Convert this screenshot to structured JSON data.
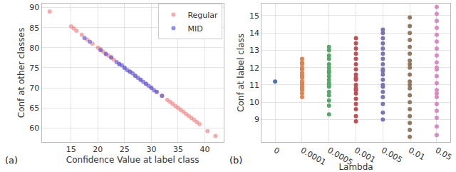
{
  "chart_data": [
    {
      "type": "scatter",
      "annotation": "(a)",
      "x_label": "Confidence Value at label class",
      "y_label": "Conf at other classes",
      "xlim": [
        9.5,
        43.5
      ],
      "xticks": [
        15,
        20,
        25,
        30,
        35,
        40
      ],
      "ylim": [
        56.5,
        91
      ],
      "yticks": [
        60,
        65,
        70,
        75,
        80,
        85,
        90
      ],
      "grid": true,
      "legend": "upper right",
      "marker": "circle",
      "series": [
        {
          "name": "Regular",
          "color": "#f08080",
          "x": [
            11,
            15,
            15.5,
            16,
            17,
            18,
            19,
            20,
            20.5,
            21,
            21.5,
            22,
            22.5,
            23,
            24,
            25,
            26,
            27,
            28,
            29,
            30,
            31,
            32,
            33,
            33.5,
            34,
            34.5,
            35,
            35.5,
            36,
            36.5,
            37,
            37.5,
            38,
            38.5,
            39,
            40.5,
            42
          ],
          "values": [
            89,
            85.3,
            84.8,
            84.2,
            83.2,
            82,
            81,
            80,
            79.6,
            79,
            78.5,
            78,
            77.5,
            77,
            76,
            75,
            74,
            73,
            72,
            71,
            70,
            69,
            68,
            67,
            66.5,
            66,
            65.5,
            65,
            64.5,
            64,
            63.5,
            63,
            62.5,
            62,
            61.5,
            61,
            59.2,
            58
          ]
        },
        {
          "name": "MID",
          "color": "#5555dd",
          "x": [
            17.5,
            18.5,
            20.5,
            21.5,
            22.5,
            23.5,
            24,
            24.5,
            25,
            25.5,
            26,
            26.5,
            27,
            27.5,
            28,
            28.5,
            29,
            29.5,
            30,
            30.5,
            31,
            32
          ],
          "values": [
            82.4,
            81.5,
            79.4,
            78.4,
            77.6,
            76.4,
            75.9,
            75.6,
            75,
            74.4,
            74,
            73.6,
            73,
            72.5,
            72,
            71.5,
            71,
            70.5,
            70,
            69.4,
            69,
            68
          ]
        }
      ]
    },
    {
      "type": "strip",
      "annotation": "(b)",
      "x_label": "Lambda",
      "y_label": "Conf at label class",
      "categories": [
        "0",
        "0.0001",
        "0.0005",
        "0.001",
        "0.005",
        "0.01",
        "0.05"
      ],
      "colors": [
        "#4c72b0",
        "#dd8452",
        "#55a868",
        "#c44e52",
        "#8172b3",
        "#937860",
        "#da8bc3"
      ],
      "ylim": [
        7.7,
        15.7
      ],
      "yticks": [
        9,
        10,
        11,
        12,
        13,
        14,
        15
      ],
      "grid": true,
      "marker": "circle",
      "values": [
        [
          11.2
        ],
        [
          10.3,
          10.5,
          10.7,
          10.9,
          11.0,
          11.2,
          11.4,
          11.5,
          11.7,
          11.9,
          12.0,
          12.2,
          12.3,
          12.5,
          11.1,
          10.8,
          11.6
        ],
        [
          9.3,
          9.8,
          10.1,
          10.4,
          10.6,
          10.9,
          11.1,
          11.3,
          11.5,
          11.8,
          12.0,
          12.2,
          12.5,
          12.7,
          13.0,
          13.2,
          11.0,
          11.7
        ],
        [
          8.9,
          9.2,
          9.6,
          9.9,
          10.2,
          10.5,
          10.8,
          11.0,
          11.3,
          11.6,
          11.9,
          12.2,
          12.5,
          12.8,
          13.1,
          13.4,
          13.7,
          10.7,
          11.4
        ],
        [
          9.0,
          9.4,
          9.9,
          10.3,
          10.6,
          11.0,
          11.3,
          11.6,
          11.9,
          12.2,
          12.5,
          12.8,
          13.1,
          13.4,
          13.7,
          14.0,
          14.2,
          10.9,
          11.8
        ],
        [
          8.0,
          8.4,
          8.8,
          9.2,
          9.6,
          10.0,
          10.4,
          10.8,
          11.2,
          11.6,
          12.0,
          12.4,
          12.8,
          13.2,
          13.6,
          14.0,
          14.4,
          14.9,
          11.0,
          12.2
        ],
        [
          8.1,
          8.6,
          9.1,
          9.5,
          9.9,
          10.3,
          10.7,
          11.1,
          11.5,
          11.9,
          12.3,
          12.7,
          13.1,
          13.5,
          13.9,
          14.3,
          14.7,
          15.1,
          15.5,
          10.5,
          12.0
        ]
      ]
    }
  ]
}
